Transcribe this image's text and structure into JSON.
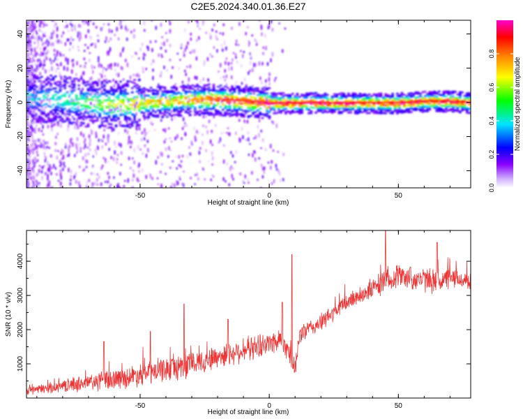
{
  "title": "C2E5.2024.340.01.36.E27",
  "colors": {
    "snr_line": "#ee3333",
    "axis": "#000000",
    "background": "#ffffff"
  },
  "chart_data": [
    {
      "type": "heatmap",
      "xlabel": "Height of straight line (km)",
      "ylabel": "Frequency (Hz)",
      "xlim": [
        -94,
        78
      ],
      "ylim": [
        -50,
        48
      ],
      "xticks": [
        -50,
        0,
        50
      ],
      "yticks": [
        -40,
        -20,
        0,
        20,
        40
      ],
      "colorbar": {
        "label": "Normalized spectral amplitude",
        "range": [
          0.0,
          1.0
        ],
        "ticks": [
          "0.0",
          "0.2",
          "0.4",
          "0.6",
          "0.8"
        ],
        "colormap": [
          "#ffffff",
          "#8a00ff",
          "#0000ff",
          "#00e5ff",
          "#00ff00",
          "#ffff00",
          "#ff8800",
          "#ff0000",
          "#ff00cc"
        ]
      },
      "ridge": {
        "x": [
          -90,
          -80,
          -70,
          -60,
          -50,
          -40,
          -30,
          -20,
          -10,
          0,
          10,
          20,
          30,
          40,
          50,
          60,
          70,
          78
        ],
        "center_hz": [
          3,
          2,
          0,
          -1,
          0,
          1,
          2,
          2,
          1,
          0,
          0,
          0,
          0,
          0,
          0,
          1,
          1,
          0
        ],
        "peak_amplitude": [
          0.3,
          0.35,
          0.45,
          0.5,
          0.6,
          0.65,
          0.7,
          0.8,
          0.85,
          0.9,
          0.9,
          0.9,
          0.9,
          0.85,
          0.9,
          0.85,
          0.9,
          0.85
        ]
      }
    },
    {
      "type": "line",
      "xlabel": "Height of straight line (km)",
      "ylabel": "SNR (10 * v/v)",
      "xlim": [
        -94,
        78
      ],
      "ylim": [
        0,
        4900
      ],
      "xticks": [
        -50,
        0,
        50
      ],
      "yticks": [
        1000,
        2000,
        3000,
        4000
      ],
      "series": [
        {
          "x": [
            -94,
            -90,
            -85,
            -80,
            -75,
            -70,
            -65,
            -60,
            -55,
            -50,
            -45,
            -40,
            -35,
            -30,
            -25,
            -20,
            -15,
            -10,
            -5,
            0,
            5,
            8,
            10,
            12,
            15,
            20,
            25,
            30,
            35,
            40,
            45,
            50,
            55,
            60,
            65,
            70,
            75,
            78
          ],
          "y": [
            200,
            250,
            300,
            350,
            400,
            450,
            500,
            550,
            600,
            700,
            750,
            850,
            900,
            1000,
            1100,
            1200,
            1300,
            1400,
            1500,
            1600,
            1750,
            1300,
            800,
            1900,
            2000,
            2200,
            2500,
            2800,
            3000,
            3200,
            3400,
            3600,
            3500,
            3450,
            3400,
            3500,
            3450,
            3400
          ],
          "noise": [
            150,
            150,
            180,
            200,
            250,
            300,
            350,
            350,
            350,
            400,
            400,
            400,
            450,
            450,
            400,
            400,
            400,
            400,
            400,
            400,
            400,
            400,
            300,
            350,
            300,
            300,
            300,
            300,
            300,
            350,
            400,
            400,
            400,
            400,
            400,
            350,
            300,
            300
          ],
          "spikes": [
            {
              "x": -64,
              "y": 1650
            },
            {
              "x": -46,
              "y": 1950
            },
            {
              "x": -33,
              "y": 2750
            },
            {
              "x": -16,
              "y": 2300
            },
            {
              "x": 5,
              "y": 2800
            },
            {
              "x": 8.8,
              "y": 4200
            },
            {
              "x": 45,
              "y": 4900
            },
            {
              "x": 65,
              "y": 4550
            }
          ]
        }
      ]
    }
  ]
}
